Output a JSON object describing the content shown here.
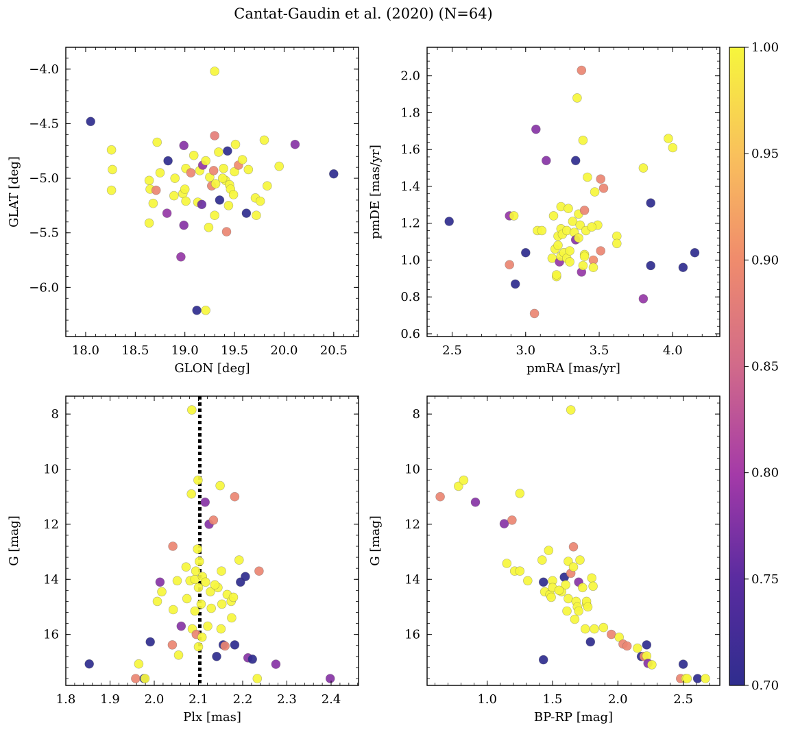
{
  "figure": {
    "title": "Cantat-Gaudin et al. (2020) (N=64)"
  },
  "colorbar": {
    "ticks": [
      "0.70",
      "0.75",
      "0.80",
      "0.85",
      "0.90",
      "0.95",
      "1.00"
    ],
    "min": 0.7,
    "max": 1.0,
    "colormap": "plasma"
  },
  "chart_data": [
    {
      "type": "scatter",
      "xlabel": "GLON [deg]",
      "ylabel": "GLAT [deg]",
      "xlim": [
        17.8,
        20.75
      ],
      "ylim": [
        -6.45,
        -3.8
      ],
      "xticks": [
        "18.0",
        "18.5",
        "19.0",
        "19.5",
        "20.0",
        "20.5"
      ],
      "yticks": [
        "-4.0",
        "-4.5",
        "-5.0",
        "-5.5",
        "-6.0"
      ],
      "x_invert": false,
      "y_invert": false,
      "points": [
        [
          18.05,
          -4.48,
          0.7
        ],
        [
          18.26,
          -4.74,
          1.0
        ],
        [
          18.27,
          -4.92,
          1.0
        ],
        [
          18.26,
          -5.11,
          1.0
        ],
        [
          18.64,
          -5.02,
          1.0
        ],
        [
          18.65,
          -5.1,
          1.0
        ],
        [
          18.64,
          -5.41,
          1.0
        ],
        [
          18.68,
          -5.23,
          1.0
        ],
        [
          18.71,
          -5.11,
          0.89
        ],
        [
          18.72,
          -4.67,
          1.0
        ],
        [
          18.75,
          -4.95,
          1.0
        ],
        [
          18.82,
          -5.32,
          0.79
        ],
        [
          18.83,
          -4.84,
          0.7
        ],
        [
          18.89,
          -5.16,
          1.0
        ],
        [
          18.96,
          -5.72,
          0.79
        ],
        [
          18.98,
          -5.14,
          1.0
        ],
        [
          18.99,
          -4.7,
          0.78
        ],
        [
          18.99,
          -5.43,
          0.78
        ],
        [
          19.01,
          -4.91,
          1.0
        ],
        [
          19.01,
          -5.21,
          1.0
        ],
        [
          19.06,
          -4.95,
          0.89
        ],
        [
          19.09,
          -4.79,
          1.0
        ],
        [
          19.12,
          -6.21,
          0.7
        ],
        [
          19.13,
          -5.22,
          1.0
        ],
        [
          19.15,
          -4.93,
          1.0
        ],
        [
          19.17,
          -5.24,
          0.76
        ],
        [
          19.18,
          -4.88,
          0.79
        ],
        [
          19.21,
          -4.84,
          1.0
        ],
        [
          19.21,
          -6.21,
          1.0
        ],
        [
          19.24,
          -5.45,
          1.0
        ],
        [
          19.25,
          -4.99,
          1.0
        ],
        [
          19.27,
          -5.07,
          0.89
        ],
        [
          19.29,
          -4.93,
          0.89
        ],
        [
          19.3,
          -4.61,
          0.88
        ],
        [
          19.3,
          -5.34,
          1.0
        ],
        [
          19.3,
          -4.02,
          1.0
        ],
        [
          19.31,
          -5.05,
          1.0
        ],
        [
          19.34,
          -4.76,
          1.0
        ],
        [
          19.35,
          -5.2,
          0.7
        ],
        [
          19.39,
          -4.91,
          1.0
        ],
        [
          19.41,
          -5.02,
          1.0
        ],
        [
          19.42,
          -5.49,
          0.89
        ],
        [
          19.43,
          -4.75,
          0.7
        ],
        [
          19.44,
          -5.25,
          1.0
        ],
        [
          19.45,
          -5.06,
          1.0
        ],
        [
          19.46,
          -5.1,
          1.0
        ],
        [
          19.49,
          -5.15,
          1.0
        ],
        [
          19.5,
          -4.94,
          1.0
        ],
        [
          19.51,
          -4.69,
          1.0
        ],
        [
          19.54,
          -4.88,
          0.9
        ],
        [
          19.58,
          -4.83,
          1.0
        ],
        [
          19.62,
          -5.32,
          0.7
        ],
        [
          19.64,
          -4.92,
          1.0
        ],
        [
          19.71,
          -5.18,
          1.0
        ],
        [
          19.72,
          -5.34,
          1.0
        ],
        [
          19.76,
          -5.21,
          1.0
        ],
        [
          19.8,
          -4.65,
          1.0
        ],
        [
          19.83,
          -5.07,
          1.0
        ],
        [
          19.95,
          -4.89,
          1.0
        ],
        [
          20.11,
          -4.69,
          0.78
        ],
        [
          20.5,
          -4.96,
          0.7
        ],
        [
          19.0,
          -5.1,
          1.0
        ],
        [
          19.38,
          -5.0,
          1.0
        ],
        [
          18.9,
          -5.0,
          1.0
        ]
      ]
    },
    {
      "type": "scatter",
      "xlabel": "pmRA [mas/yr]",
      "ylabel": "pmDE [mas/yr]",
      "xlim": [
        2.33,
        4.32
      ],
      "ylim": [
        0.585,
        2.155
      ],
      "xticks": [
        "2.5",
        "3.0",
        "3.5",
        "4.0"
      ],
      "yticks": [
        "0.6",
        "0.8",
        "1.0",
        "1.2",
        "1.4",
        "1.6",
        "1.8",
        "2.0"
      ],
      "x_invert": false,
      "y_invert": false,
      "points": [
        [
          2.48,
          1.21,
          0.7
        ],
        [
          2.89,
          1.24,
          0.79
        ],
        [
          2.89,
          0.975,
          0.89
        ],
        [
          2.92,
          1.24,
          1.0
        ],
        [
          2.93,
          0.87,
          0.7
        ],
        [
          3.0,
          1.04,
          0.7
        ],
        [
          3.06,
          0.71,
          0.89
        ],
        [
          3.07,
          1.71,
          0.78
        ],
        [
          3.08,
          1.16,
          1.0
        ],
        [
          3.11,
          1.16,
          1.0
        ],
        [
          3.14,
          1.54,
          0.78
        ],
        [
          3.18,
          1.01,
          1.0
        ],
        [
          3.19,
          1.24,
          1.0
        ],
        [
          3.2,
          1.06,
          1.0
        ],
        [
          3.21,
          0.91,
          1.0
        ],
        [
          3.21,
          0.92,
          1.0
        ],
        [
          3.22,
          1.13,
          1.0
        ],
        [
          3.23,
          0.99,
          0.79
        ],
        [
          3.24,
          1.29,
          1.0
        ],
        [
          3.24,
          1.17,
          1.0
        ],
        [
          3.24,
          1.02,
          1.0
        ],
        [
          3.25,
          1.14,
          1.0
        ],
        [
          3.26,
          1.04,
          1.0
        ],
        [
          3.28,
          1.01,
          1.0
        ],
        [
          3.28,
          1.16,
          1.0
        ],
        [
          3.29,
          1.28,
          1.0
        ],
        [
          3.3,
          1.05,
          1.0
        ],
        [
          3.32,
          1.21,
          1.0
        ],
        [
          3.33,
          1.15,
          1.0
        ],
        [
          3.34,
          1.11,
          0.78
        ],
        [
          3.34,
          1.54,
          0.7
        ],
        [
          3.35,
          1.88,
          1.0
        ],
        [
          3.36,
          1.12,
          1.0
        ],
        [
          3.36,
          1.25,
          1.0
        ],
        [
          3.37,
          1.19,
          1.0
        ],
        [
          3.38,
          2.03,
          0.89
        ],
        [
          3.38,
          0.935,
          0.79
        ],
        [
          3.39,
          1.65,
          1.0
        ],
        [
          3.39,
          0.97,
          1.0
        ],
        [
          3.4,
          1.03,
          1.0
        ],
        [
          3.4,
          1.02,
          1.0
        ],
        [
          3.4,
          1.27,
          0.89
        ],
        [
          3.41,
          1.16,
          1.0
        ],
        [
          3.42,
          1.45,
          1.0
        ],
        [
          3.46,
          1.0,
          0.9
        ],
        [
          3.46,
          0.96,
          1.0
        ],
        [
          3.47,
          1.37,
          1.0
        ],
        [
          3.49,
          1.19,
          1.0
        ],
        [
          3.51,
          1.44,
          0.89
        ],
        [
          3.51,
          1.05,
          0.89
        ],
        [
          3.53,
          1.39,
          0.89
        ],
        [
          3.62,
          1.13,
          1.0
        ],
        [
          3.62,
          1.09,
          1.0
        ],
        [
          3.8,
          1.5,
          1.0
        ],
        [
          3.8,
          0.79,
          0.79
        ],
        [
          3.85,
          1.31,
          0.7
        ],
        [
          3.85,
          0.97,
          0.7
        ],
        [
          3.97,
          1.66,
          1.0
        ],
        [
          4.0,
          1.61,
          1.0
        ],
        [
          4.07,
          0.96,
          0.7
        ],
        [
          4.15,
          1.04,
          0.7
        ],
        [
          3.3,
          0.99,
          1.0
        ],
        [
          3.45,
          1.18,
          1.0
        ],
        [
          3.22,
          1.08,
          1.0
        ]
      ]
    },
    {
      "type": "scatter",
      "xlabel": "Plx [mas]",
      "ylabel": "G [mag]",
      "xlim": [
        1.8,
        2.462
      ],
      "ylim": [
        7.35,
        17.85
      ],
      "xticks": [
        "1.8",
        "1.9",
        "2.0",
        "2.1",
        "2.2",
        "2.3",
        "2.4"
      ],
      "yticks": [
        "8",
        "10",
        "12",
        "14",
        "16"
      ],
      "x_invert": false,
      "y_invert": true,
      "vline": 2.103,
      "points": [
        [
          1.853,
          17.07,
          0.7
        ],
        [
          1.958,
          17.6,
          0.89
        ],
        [
          1.965,
          17.07,
          1.0
        ],
        [
          1.977,
          17.6,
          0.7
        ],
        [
          1.979,
          17.6,
          1.0
        ],
        [
          1.991,
          16.27,
          0.7
        ],
        [
          2.007,
          14.8,
          1.0
        ],
        [
          2.013,
          14.1,
          0.78
        ],
        [
          2.017,
          14.45,
          1.0
        ],
        [
          2.041,
          16.38,
          0.89
        ],
        [
          2.042,
          12.8,
          0.89
        ],
        [
          2.043,
          15.1,
          1.0
        ],
        [
          2.052,
          14.05,
          1.0
        ],
        [
          2.055,
          16.75,
          1.0
        ],
        [
          2.061,
          15.7,
          0.78
        ],
        [
          2.072,
          13.55,
          1.0
        ],
        [
          2.074,
          14.7,
          1.0
        ],
        [
          2.081,
          14.05,
          1.0
        ],
        [
          2.084,
          10.9,
          1.0
        ],
        [
          2.085,
          7.85,
          1.0
        ],
        [
          2.086,
          15.8,
          1.0
        ],
        [
          2.092,
          14.0,
          1.0
        ],
        [
          2.092,
          15.15,
          1.0
        ],
        [
          2.094,
          13.7,
          1.0
        ],
        [
          2.095,
          16.0,
          0.89
        ],
        [
          2.098,
          12.9,
          1.0
        ],
        [
          2.099,
          10.4,
          1.0
        ],
        [
          2.1,
          16.45,
          1.0
        ],
        [
          2.1,
          14.3,
          1.0
        ],
        [
          2.102,
          13.35,
          1.0
        ],
        [
          2.106,
          14.9,
          1.0
        ],
        [
          2.108,
          16.1,
          1.0
        ],
        [
          2.109,
          13.9,
          1.0
        ],
        [
          2.115,
          11.2,
          0.78
        ],
        [
          2.116,
          14.1,
          1.0
        ],
        [
          2.121,
          15.7,
          1.0
        ],
        [
          2.124,
          12.0,
          0.78
        ],
        [
          2.127,
          14.45,
          1.0
        ],
        [
          2.129,
          15.05,
          1.0
        ],
        [
          2.134,
          11.85,
          0.89
        ],
        [
          2.141,
          16.8,
          0.7
        ],
        [
          2.144,
          14.3,
          1.0
        ],
        [
          2.149,
          10.6,
          1.0
        ],
        [
          2.151,
          15.8,
          1.0
        ],
        [
          2.152,
          13.7,
          1.0
        ],
        [
          2.153,
          14.9,
          1.0
        ],
        [
          2.156,
          16.38,
          0.7
        ],
        [
          2.16,
          16.42,
          0.89
        ],
        [
          2.165,
          14.55,
          1.0
        ],
        [
          2.174,
          14.8,
          1.0
        ],
        [
          2.175,
          15.4,
          1.0
        ],
        [
          2.179,
          14.65,
          1.0
        ],
        [
          2.182,
          11.0,
          0.89
        ],
        [
          2.182,
          16.38,
          0.7
        ],
        [
          2.192,
          13.3,
          1.0
        ],
        [
          2.195,
          14.1,
          0.7
        ],
        [
          2.206,
          13.9,
          0.7
        ],
        [
          2.212,
          16.85,
          0.78
        ],
        [
          2.222,
          16.9,
          0.7
        ],
        [
          2.233,
          17.6,
          1.0
        ],
        [
          2.237,
          13.7,
          0.89
        ],
        [
          2.275,
          17.08,
          0.78
        ],
        [
          2.398,
          17.6,
          0.78
        ],
        [
          2.137,
          14.2,
          1.0
        ]
      ]
    },
    {
      "type": "scatter",
      "xlabel": "BP-RP [mag]",
      "ylabel": "G [mag]",
      "xlim": [
        0.54,
        2.78
      ],
      "ylim": [
        7.35,
        17.85
      ],
      "xticks": [
        "1.0",
        "1.5",
        "2.0",
        "2.5"
      ],
      "yticks": [
        "8",
        "10",
        "12",
        "14",
        "16"
      ],
      "x_invert": false,
      "y_invert": true,
      "points": [
        [
          0.64,
          11.0,
          0.89
        ],
        [
          0.78,
          10.62,
          1.0
        ],
        [
          0.82,
          10.4,
          1.0
        ],
        [
          0.91,
          11.2,
          0.78
        ],
        [
          1.13,
          11.98,
          0.78
        ],
        [
          1.15,
          13.42,
          1.0
        ],
        [
          1.19,
          11.85,
          0.89
        ],
        [
          1.21,
          13.7,
          1.0
        ],
        [
          1.25,
          10.88,
          1.0
        ],
        [
          1.25,
          13.7,
          1.0
        ],
        [
          1.31,
          14.05,
          1.0
        ],
        [
          1.42,
          13.3,
          1.0
        ],
        [
          1.43,
          14.1,
          0.7
        ],
        [
          1.43,
          16.92,
          0.7
        ],
        [
          1.44,
          14.45,
          1.0
        ],
        [
          1.47,
          12.95,
          1.0
        ],
        [
          1.48,
          14.55,
          1.0
        ],
        [
          1.49,
          14.65,
          1.0
        ],
        [
          1.5,
          14.05,
          1.0
        ],
        [
          1.5,
          14.3,
          1.0
        ],
        [
          1.57,
          14.45,
          1.0
        ],
        [
          1.59,
          13.92,
          0.7
        ],
        [
          1.6,
          14.2,
          1.0
        ],
        [
          1.61,
          15.15,
          1.0
        ],
        [
          1.62,
          13.35,
          1.0
        ],
        [
          1.62,
          14.7,
          1.0
        ],
        [
          1.64,
          7.85,
          1.0
        ],
        [
          1.64,
          13.78,
          0.89
        ],
        [
          1.66,
          12.82,
          0.89
        ],
        [
          1.66,
          13.55,
          1.0
        ],
        [
          1.67,
          15.45,
          1.0
        ],
        [
          1.68,
          14.8,
          1.0
        ],
        [
          1.69,
          15.0,
          1.0
        ],
        [
          1.7,
          14.1,
          0.78
        ],
        [
          1.7,
          15.15,
          1.0
        ],
        [
          1.71,
          13.3,
          1.0
        ],
        [
          1.75,
          15.8,
          1.0
        ],
        [
          1.76,
          14.9,
          1.0
        ],
        [
          1.76,
          14.8,
          1.0
        ],
        [
          1.77,
          15.0,
          1.0
        ],
        [
          1.79,
          16.27,
          0.7
        ],
        [
          1.8,
          13.95,
          1.0
        ],
        [
          1.81,
          14.25,
          1.0
        ],
        [
          1.82,
          15.8,
          1.0
        ],
        [
          1.89,
          15.75,
          1.0
        ],
        [
          1.95,
          16.0,
          0.89
        ],
        [
          2.01,
          16.1,
          1.0
        ],
        [
          2.04,
          16.35,
          0.89
        ],
        [
          2.07,
          16.42,
          0.89
        ],
        [
          2.15,
          16.5,
          1.0
        ],
        [
          2.18,
          16.8,
          0.7
        ],
        [
          2.2,
          16.8,
          0.89
        ],
        [
          2.22,
          16.38,
          0.7
        ],
        [
          2.22,
          16.78,
          1.0
        ],
        [
          2.23,
          17.05,
          0.78
        ],
        [
          2.26,
          17.1,
          1.0
        ],
        [
          2.48,
          17.6,
          0.89
        ],
        [
          2.5,
          17.08,
          0.7
        ],
        [
          2.52,
          17.6,
          1.0
        ],
        [
          2.53,
          17.6,
          1.0
        ],
        [
          2.61,
          17.6,
          0.7
        ],
        [
          2.67,
          17.6,
          1.0
        ],
        [
          1.73,
          14.3,
          1.0
        ],
        [
          1.55,
          14.4,
          1.0
        ]
      ]
    }
  ]
}
